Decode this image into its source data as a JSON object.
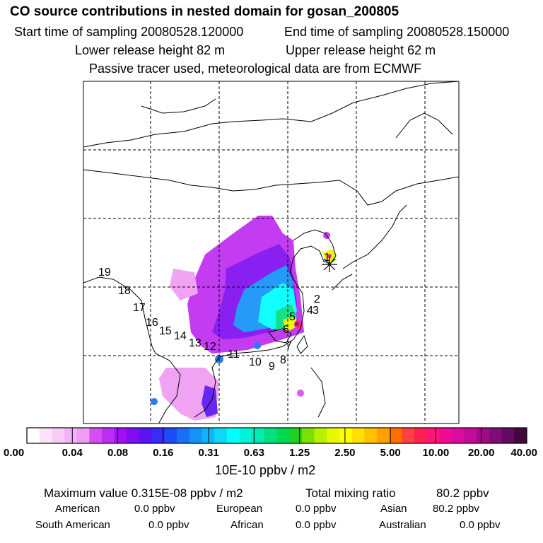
{
  "title": "CO  source contributions in nested domain for gosan_200805",
  "header": {
    "start_label": "Start time of sampling 20080528.120000",
    "end_label": "End time of sampling 20080528.150000",
    "lower_label": "Lower release height   82 m",
    "upper_label": "Upper release height   62 m",
    "tracer_note": "Passive tracer used, meteorological data are from ECMWF"
  },
  "map": {
    "release_marker_icon": "asterisk-icon",
    "trajectory_points": [
      {
        "label": "1"
      },
      {
        "label": "2"
      },
      {
        "label": "3"
      },
      {
        "label": "4"
      },
      {
        "label": "5"
      },
      {
        "label": "6"
      },
      {
        "label": "7"
      },
      {
        "label": "8"
      },
      {
        "label": "9"
      },
      {
        "label": "10"
      },
      {
        "label": "11"
      },
      {
        "label": "12"
      },
      {
        "label": "13"
      },
      {
        "label": "14"
      },
      {
        "label": "15"
      },
      {
        "label": "16"
      },
      {
        "label": "17"
      },
      {
        "label": "18"
      },
      {
        "label": "19"
      }
    ]
  },
  "colorbar": {
    "ticks": [
      "0.00",
      "0.04",
      "0.08",
      "0.16",
      "0.31",
      "0.63",
      "1.25",
      "2.50",
      "5.00",
      "10.00",
      "20.00",
      "40.00"
    ],
    "unit": "10E-10 ppbv / m2",
    "colors": [
      "#ffffff",
      "#fbe4fb",
      "#f7ccf7",
      "#f2b4f4",
      "#ef9cf2",
      "#d64df2",
      "#c02cf0",
      "#a40ef0",
      "#7f0df0",
      "#5a14f2",
      "#3a2cf2",
      "#1c4df4",
      "#1a70f5",
      "#1393f7",
      "#10b4f8",
      "#10d6f8",
      "#00ffff",
      "#00f5d8",
      "#00ecb0",
      "#00e080",
      "#00d850",
      "#20d020",
      "#7ee000",
      "#b8f000",
      "#e8f800",
      "#ffff00",
      "#ffe000",
      "#ffc000",
      "#ffa000",
      "#ff7000",
      "#ff4040",
      "#ff2050",
      "#ff1478",
      "#f00c90",
      "#d80ca0",
      "#c00c98",
      "#a00c88",
      "#800c78",
      "#600a60",
      "#40083c"
    ]
  },
  "stats": {
    "max_label": "Maximum value  0.315E-08 ppbv / m2",
    "total_label": "Total mixing ratio",
    "total_value": "80.2 ppbv",
    "regions": [
      {
        "name": "American",
        "value": "0.0 ppbv"
      },
      {
        "name": "European",
        "value": "0.0 ppbv"
      },
      {
        "name": "Asian",
        "value": "80.2 ppbv"
      },
      {
        "name": "South American",
        "value": "0.0 ppbv"
      },
      {
        "name": "African",
        "value": "0.0 ppbv"
      },
      {
        "name": "Australian",
        "value": "0.0 ppbv"
      }
    ]
  }
}
